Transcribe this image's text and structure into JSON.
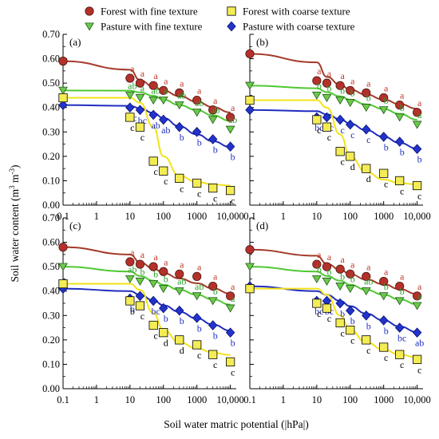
{
  "figure": {
    "xlabel": "Soil water matric potential (|hPa|)",
    "ylabel_main": "Soil water content (m",
    "ylabel_sup1": "3",
    "ylabel_mid": " m",
    "ylabel_sup2": "-3",
    "ylabel_end": ")"
  },
  "legend": {
    "items": [
      {
        "label": "Forest with fine texture",
        "series": "ff",
        "marker": "circle",
        "color": "#b5302b",
        "fill": "#b5302b"
      },
      {
        "label": "Forest with coarse texture",
        "series": "fc",
        "marker": "square",
        "color": "#f4e52b",
        "fill": "#f4ec55"
      },
      {
        "label": "Pasture with fine texture",
        "series": "pf",
        "marker": "triangle-down",
        "color": "#3fa12f",
        "fill": "#6cc94a"
      },
      {
        "label": "Pasture with coarse texture",
        "series": "pc",
        "marker": "diamond",
        "color": "#1f2dbf",
        "fill": "#2233cc"
      }
    ]
  },
  "colors": {
    "ff_line": "#a33a2a",
    "ff_marker": "#b5302b",
    "ff_label": "#c0392b",
    "fc_line": "#f2e21a",
    "fc_marker": "#f4ec55",
    "fc_label": "#000000",
    "pf_line": "#4fc832",
    "pf_marker": "#6cc94a",
    "pf_label": "#2d9e2a",
    "pc_line": "#1f2dbf",
    "pc_marker": "#2233cc",
    "pc_label": "#1f2dbf"
  },
  "chart_data": [
    {
      "type": "scatter",
      "panel": "(a)",
      "xscale": "log",
      "xlim": [
        0.1,
        15000
      ],
      "ylim": [
        0,
        0.7
      ],
      "xticks": [
        "0.1",
        "1",
        "10",
        "100",
        "1000",
        "10,000"
      ],
      "yticks": [
        "0.00",
        "0.10",
        "0.20",
        "0.30",
        "0.40",
        "0.50",
        "0.60",
        "0.70"
      ],
      "x": [
        0.1,
        10,
        20,
        50,
        100,
        300,
        1000,
        3000,
        10000
      ],
      "series": [
        {
          "key": "ff",
          "name": "Forest with fine texture",
          "values": [
            0.59,
            0.52,
            0.5,
            0.49,
            0.47,
            0.46,
            0.43,
            0.39,
            0.36
          ],
          "fit": [
            0.59,
            0.555,
            0.512,
            0.486,
            0.469,
            0.447,
            0.424,
            0.402,
            0.38
          ],
          "labels": [
            "",
            "a",
            "a",
            "a",
            "a",
            "a",
            "a",
            "a",
            "a"
          ]
        },
        {
          "key": "pf",
          "name": "Pasture with fine texture",
          "values": [
            0.47,
            0.45,
            0.44,
            0.43,
            0.43,
            0.41,
            0.38,
            0.35,
            0.31
          ],
          "fit": [
            0.47,
            0.469,
            0.462,
            0.448,
            0.432,
            0.41,
            0.389,
            0.368,
            0.345
          ],
          "labels": [
            "",
            "ab",
            "a",
            "ab",
            "a",
            "ab",
            "ab",
            "ab",
            "ab"
          ]
        },
        {
          "key": "pc",
          "name": "Pasture with coarse texture",
          "values": [
            0.41,
            0.4,
            0.39,
            0.37,
            0.35,
            0.32,
            0.3,
            0.27,
            0.24
          ],
          "fit": [
            0.41,
            0.407,
            0.397,
            0.378,
            0.357,
            0.323,
            0.29,
            0.262,
            0.238
          ],
          "labels": [
            "",
            "bc",
            "bc",
            "ab",
            "ab",
            "b",
            "b",
            "b",
            "b"
          ]
        },
        {
          "key": "fc",
          "name": "Forest with coarse texture",
          "values": [
            0.44,
            0.36,
            0.32,
            0.18,
            0.14,
            0.11,
            0.09,
            0.07,
            0.06
          ],
          "fit": [
            0.44,
            0.44,
            0.42,
            0.32,
            0.2,
            0.12,
            0.095,
            0.085,
            0.08
          ],
          "labels": [
            "",
            "c",
            "c",
            "c",
            "c",
            "c",
            "c",
            "c",
            "c"
          ]
        }
      ]
    },
    {
      "type": "scatter",
      "panel": "(b)",
      "xscale": "log",
      "xlim": [
        0.1,
        15000
      ],
      "ylim": [
        0,
        0.7
      ],
      "xticks": [
        "0.1",
        "1",
        "10",
        "100",
        "1000",
        "10,000"
      ],
      "yticks": [
        "0.00",
        "0.10",
        "0.20",
        "0.30",
        "0.40",
        "0.50",
        "0.60",
        "0.70"
      ],
      "x": [
        0.1,
        10,
        20,
        50,
        100,
        300,
        1000,
        3000,
        10000
      ],
      "series": [
        {
          "key": "ff",
          "name": "Forest with fine texture",
          "values": [
            0.62,
            0.51,
            0.5,
            0.49,
            0.47,
            0.46,
            0.44,
            0.41,
            0.38
          ],
          "fit": [
            0.62,
            0.585,
            0.526,
            0.493,
            0.473,
            0.453,
            0.433,
            0.414,
            0.395
          ],
          "labels": [
            "",
            "a",
            "a",
            "a",
            "a",
            "a",
            "a",
            "a",
            "a"
          ]
        },
        {
          "key": "pf",
          "name": "Pasture with fine texture",
          "values": [
            0.49,
            0.45,
            0.44,
            0.43,
            0.42,
            0.4,
            0.39,
            0.36,
            0.33
          ],
          "fit": [
            0.49,
            0.479,
            0.463,
            0.446,
            0.432,
            0.413,
            0.394,
            0.374,
            0.35
          ],
          "labels": [
            "",
            "b",
            "b",
            "b",
            "b",
            "b",
            "b",
            "b",
            "a"
          ]
        },
        {
          "key": "pc",
          "name": "Pasture with coarse texture",
          "values": [
            0.39,
            0.36,
            0.36,
            0.35,
            0.33,
            0.31,
            0.28,
            0.26,
            0.23
          ],
          "fit": [
            0.39,
            0.385,
            0.372,
            0.352,
            0.334,
            0.307,
            0.28,
            0.255,
            0.232
          ],
          "labels": [
            "",
            "bc",
            "bc",
            "c",
            "c",
            "c",
            "b",
            "b",
            "b"
          ]
        },
        {
          "key": "fc",
          "name": "Forest with coarse texture",
          "values": [
            0.43,
            0.35,
            0.32,
            0.22,
            0.2,
            0.15,
            0.13,
            0.1,
            0.08
          ],
          "fit": [
            0.43,
            0.43,
            0.4,
            0.29,
            0.2,
            0.135,
            0.105,
            0.09,
            0.085
          ],
          "labels": [
            "",
            "c",
            "c",
            "c",
            "d",
            "d",
            "c",
            "c",
            "c"
          ]
        }
      ]
    },
    {
      "type": "scatter",
      "panel": "(c)",
      "xscale": "log",
      "xlim": [
        0.1,
        15000
      ],
      "ylim": [
        0,
        0.7
      ],
      "xticks": [
        "0.1",
        "1",
        "10",
        "100",
        "1000",
        "10,000"
      ],
      "yticks": [
        "0.00",
        "0.10",
        "0.20",
        "0.30",
        "0.40",
        "0.50",
        "0.60",
        "0.70"
      ],
      "x": [
        0.1,
        10,
        20,
        50,
        100,
        300,
        1000,
        3000,
        10000
      ],
      "series": [
        {
          "key": "ff",
          "name": "Forest with fine texture",
          "values": [
            0.58,
            0.52,
            0.51,
            0.5,
            0.48,
            0.47,
            0.46,
            0.42,
            0.38
          ],
          "fit": [
            0.58,
            0.55,
            0.518,
            0.493,
            0.474,
            0.452,
            0.432,
            0.411,
            0.39
          ],
          "labels": [
            "",
            "a",
            "a",
            "a",
            "a",
            "a",
            "a",
            "a",
            "a"
          ]
        },
        {
          "key": "pf",
          "name": "Pasture with fine texture",
          "values": [
            0.5,
            0.45,
            0.44,
            0.43,
            0.41,
            0.4,
            0.38,
            0.36,
            0.33
          ],
          "fit": [
            0.5,
            0.48,
            0.462,
            0.443,
            0.426,
            0.405,
            0.385,
            0.366,
            0.345
          ],
          "labels": [
            "",
            "ab",
            "b",
            "b",
            "b",
            "ab",
            "ab",
            "b",
            "a"
          ]
        },
        {
          "key": "pc",
          "name": "Pasture with coarse texture",
          "values": [
            0.41,
            0.37,
            0.38,
            0.36,
            0.33,
            0.32,
            0.29,
            0.26,
            0.23
          ],
          "fit": [
            0.41,
            0.4,
            0.385,
            0.362,
            0.342,
            0.315,
            0.288,
            0.263,
            0.238
          ],
          "labels": [
            "",
            "b",
            "b",
            "bc",
            "b",
            "b",
            "b",
            "b",
            "b"
          ]
        },
        {
          "key": "fc",
          "name": "Forest with coarse texture",
          "values": [
            0.43,
            0.36,
            0.34,
            0.26,
            0.23,
            0.2,
            0.18,
            0.14,
            0.11
          ],
          "fit": [
            0.43,
            0.43,
            0.405,
            0.31,
            0.24,
            0.19,
            0.165,
            0.148,
            0.138
          ],
          "labels": [
            "",
            "b",
            "c",
            "c",
            "d",
            "d",
            "c",
            "c",
            "c"
          ]
        }
      ]
    },
    {
      "type": "scatter",
      "panel": "(d)",
      "xscale": "log",
      "xlim": [
        0.1,
        15000
      ],
      "ylim": [
        0,
        0.7
      ],
      "xticks": [
        "0.1",
        "1",
        "10",
        "100",
        "1000",
        "10,000"
      ],
      "yticks": [
        "0.00",
        "0.10",
        "0.20",
        "0.30",
        "0.40",
        "0.50",
        "0.60",
        "0.70"
      ],
      "x": [
        0.1,
        10,
        20,
        50,
        100,
        300,
        1000,
        3000,
        10000
      ],
      "series": [
        {
          "key": "ff",
          "name": "Forest with fine texture",
          "values": [
            0.57,
            0.51,
            0.5,
            0.49,
            0.47,
            0.46,
            0.44,
            0.42,
            0.38
          ],
          "fit": [
            0.57,
            0.545,
            0.512,
            0.488,
            0.469,
            0.448,
            0.428,
            0.408,
            0.388
          ],
          "labels": [
            "",
            "a",
            "a",
            "a",
            "a",
            "a",
            "a",
            "a",
            "a"
          ]
        },
        {
          "key": "pf",
          "name": "Pasture with fine texture",
          "values": [
            0.5,
            0.45,
            0.44,
            0.42,
            0.41,
            0.4,
            0.38,
            0.36,
            0.34
          ],
          "fit": [
            0.5,
            0.48,
            0.462,
            0.443,
            0.426,
            0.405,
            0.385,
            0.366,
            0.346
          ],
          "labels": [
            "",
            "b",
            "b",
            "b",
            "b",
            "ab",
            "b",
            "b",
            "a"
          ]
        },
        {
          "key": "pc",
          "name": "Pasture with coarse texture",
          "values": [
            0.42,
            0.36,
            0.36,
            0.35,
            0.32,
            0.3,
            0.28,
            0.25,
            0.23
          ],
          "fit": [
            0.42,
            0.4,
            0.385,
            0.36,
            0.338,
            0.308,
            0.28,
            0.255,
            0.232
          ],
          "labels": [
            "",
            "bc",
            "bc",
            "b",
            "b",
            "b",
            "b",
            "bc",
            "ab"
          ]
        },
        {
          "key": "fc",
          "name": "Forest with coarse texture",
          "values": [
            0.41,
            0.35,
            0.33,
            0.27,
            0.24,
            0.2,
            0.17,
            0.14,
            0.12
          ],
          "fit": [
            0.41,
            0.41,
            0.385,
            0.3,
            0.24,
            0.19,
            0.16,
            0.14,
            0.128
          ],
          "labels": [
            "",
            "c",
            "c",
            "c",
            "c",
            "c",
            "c",
            "c",
            "c"
          ]
        }
      ]
    }
  ]
}
